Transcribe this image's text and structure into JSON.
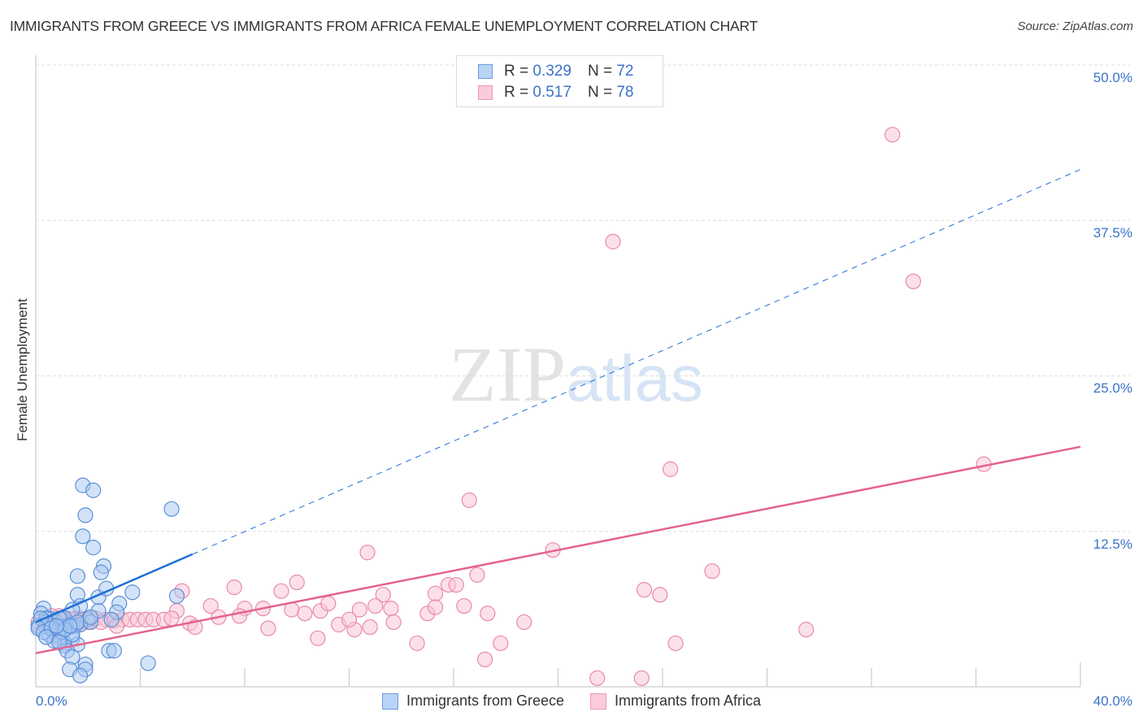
{
  "header": {
    "title": "IMMIGRANTS FROM GREECE VS IMMIGRANTS FROM AFRICA FEMALE UNEMPLOYMENT CORRELATION CHART",
    "source": "Source: ZipAtlas.com"
  },
  "watermark": {
    "zip": "ZIP",
    "atlas": "atlas"
  },
  "colors": {
    "greece_fill": "#a8c8f0",
    "greece_stroke": "#5b8fd8",
    "greece_line": "#1f6fd6",
    "africa_fill": "#f9c6d6",
    "africa_stroke": "#e88aa8",
    "africa_line": "#e4638e",
    "tick_label": "#3b73c8",
    "grid": "#dddddd"
  },
  "legend": {
    "rows": [
      {
        "r_label": "R = ",
        "r_value": "0.329",
        "n_label": "N = ",
        "n_value": "72"
      },
      {
        "r_label": "R = ",
        "r_value": " 0.517",
        "n_label": "N = ",
        "n_value": "78"
      }
    ]
  },
  "axes": {
    "y_ticks": [
      "50.0%",
      "37.5%",
      "25.0%",
      "12.5%"
    ],
    "x_min_label": "0.0%",
    "x_max_label": "40.0%"
  },
  "chart_data": {
    "type": "scatter",
    "title": "IMMIGRANTS FROM GREECE VS IMMIGRANTS FROM AFRICA FEMALE UNEMPLOYMENT CORRELATION CHART",
    "xlabel": "",
    "ylabel": "Female Unemployment",
    "xlim": [
      0,
      40
    ],
    "ylim": [
      0,
      50
    ],
    "x_ticks": [
      0,
      4,
      8,
      12,
      16,
      20,
      24,
      28,
      32,
      36,
      40
    ],
    "y_ticks": [
      12.5,
      25.0,
      37.5,
      50.0
    ],
    "grid": "horizontal dashed",
    "legend_position": "top-center and bottom",
    "series": [
      {
        "name": "Immigrants from Greece",
        "R": 0.329,
        "N": 72,
        "trend": {
          "x0": 0,
          "y0": 5.2,
          "x1": 40,
          "y1": 41.6,
          "solid_until_x": 6.0
        },
        "points": [
          [
            1.8,
            16.2
          ],
          [
            2.2,
            15.8
          ],
          [
            1.9,
            13.8
          ],
          [
            1.8,
            12.1
          ],
          [
            2.2,
            11.2
          ],
          [
            5.2,
            14.3
          ],
          [
            1.6,
            8.9
          ],
          [
            2.6,
            9.7
          ],
          [
            2.5,
            9.2
          ],
          [
            1.6,
            7.4
          ],
          [
            2.4,
            7.2
          ],
          [
            2.7,
            7.9
          ],
          [
            3.7,
            7.6
          ],
          [
            5.4,
            7.3
          ],
          [
            3.2,
            6.7
          ],
          [
            1.7,
            6.5
          ],
          [
            1.4,
            6.2
          ],
          [
            2.4,
            6.1
          ],
          [
            3.1,
            6.0
          ],
          [
            2.9,
            5.4
          ],
          [
            1.2,
            5.0
          ],
          [
            2.0,
            5.4
          ],
          [
            0.3,
            6.3
          ],
          [
            0.2,
            5.9
          ],
          [
            0.5,
            5.5
          ],
          [
            0.8,
            5.2
          ],
          [
            1.1,
            5.5
          ],
          [
            0.1,
            4.9
          ],
          [
            0.4,
            4.8
          ],
          [
            0.6,
            5.0
          ],
          [
            0.8,
            4.6
          ],
          [
            1.0,
            4.8
          ],
          [
            1.3,
            4.8
          ],
          [
            1.5,
            4.9
          ],
          [
            0.8,
            4.2
          ],
          [
            1.4,
            3.9
          ],
          [
            1.1,
            3.5
          ],
          [
            1.6,
            3.4
          ],
          [
            1.4,
            4.9
          ],
          [
            1.7,
            5.0
          ],
          [
            0.5,
            4.2
          ],
          [
            0.7,
            4.4
          ],
          [
            0.9,
            4.0
          ],
          [
            1.1,
            3.3
          ],
          [
            1.2,
            2.9
          ],
          [
            2.8,
            2.9
          ],
          [
            3.0,
            2.9
          ],
          [
            1.4,
            2.4
          ],
          [
            1.9,
            1.8
          ],
          [
            1.3,
            1.4
          ],
          [
            1.9,
            1.4
          ],
          [
            1.7,
            0.9
          ],
          [
            4.3,
            1.9
          ],
          [
            0.4,
            5.5
          ],
          [
            0.6,
            4.9
          ],
          [
            0.9,
            5.5
          ],
          [
            0.4,
            5.2
          ],
          [
            0.2,
            5.5
          ],
          [
            0.7,
            3.7
          ],
          [
            1.0,
            4.4
          ],
          [
            1.4,
            4.2
          ],
          [
            1.6,
            5.2
          ],
          [
            2.1,
            5.2
          ],
          [
            0.1,
            4.7
          ],
          [
            0.3,
            4.4
          ],
          [
            1.1,
            4.6
          ],
          [
            1.3,
            4.9
          ],
          [
            0.6,
            4.7
          ],
          [
            0.8,
            4.9
          ],
          [
            0.4,
            4.0
          ],
          [
            0.9,
            3.6
          ],
          [
            2.1,
            5.6
          ]
        ]
      },
      {
        "name": "Immigrants from Africa",
        "R": 0.517,
        "N": 78,
        "trend": {
          "x0": 0,
          "y0": 2.7,
          "x1": 40,
          "y1": 19.3
        },
        "points": [
          [
            32.8,
            44.4
          ],
          [
            22.1,
            35.8
          ],
          [
            33.6,
            32.6
          ],
          [
            24.3,
            17.5
          ],
          [
            36.3,
            17.9
          ],
          [
            16.6,
            15.0
          ],
          [
            12.7,
            10.8
          ],
          [
            19.8,
            11.0
          ],
          [
            25.9,
            9.3
          ],
          [
            16.9,
            9.0
          ],
          [
            5.6,
            7.7
          ],
          [
            7.6,
            8.0
          ],
          [
            9.4,
            7.7
          ],
          [
            10.0,
            8.4
          ],
          [
            13.3,
            7.4
          ],
          [
            15.3,
            7.5
          ],
          [
            15.8,
            8.2
          ],
          [
            16.1,
            8.2
          ],
          [
            23.3,
            7.8
          ],
          [
            23.9,
            7.4
          ],
          [
            6.7,
            6.5
          ],
          [
            5.4,
            6.1
          ],
          [
            8.0,
            6.3
          ],
          [
            8.7,
            6.3
          ],
          [
            9.8,
            6.2
          ],
          [
            10.3,
            5.9
          ],
          [
            10.9,
            6.1
          ],
          [
            11.2,
            6.7
          ],
          [
            12.4,
            6.2
          ],
          [
            13.0,
            6.5
          ],
          [
            13.6,
            6.3
          ],
          [
            15.0,
            5.9
          ],
          [
            15.3,
            6.4
          ],
          [
            16.4,
            6.5
          ],
          [
            17.3,
            5.9
          ],
          [
            0.6,
            5.7
          ],
          [
            0.9,
            5.7
          ],
          [
            1.2,
            5.5
          ],
          [
            1.5,
            5.5
          ],
          [
            1.7,
            5.5
          ],
          [
            2.1,
            5.5
          ],
          [
            2.3,
            5.5
          ],
          [
            2.7,
            5.4
          ],
          [
            3.0,
            5.3
          ],
          [
            3.3,
            5.4
          ],
          [
            3.6,
            5.4
          ],
          [
            3.9,
            5.4
          ],
          [
            4.2,
            5.4
          ],
          [
            4.5,
            5.4
          ],
          [
            4.9,
            5.4
          ],
          [
            5.2,
            5.5
          ],
          [
            0.3,
            4.9
          ],
          [
            0.6,
            4.9
          ],
          [
            0.1,
            5.2
          ],
          [
            1.6,
            5.0
          ],
          [
            2.0,
            5.2
          ],
          [
            5.9,
            5.1
          ],
          [
            7.0,
            5.6
          ],
          [
            7.8,
            5.7
          ],
          [
            8.9,
            4.7
          ],
          [
            11.6,
            5.0
          ],
          [
            12.2,
            4.6
          ],
          [
            13.7,
            5.2
          ],
          [
            18.7,
            5.2
          ],
          [
            10.8,
            3.9
          ],
          [
            14.6,
            3.5
          ],
          [
            17.8,
            3.5
          ],
          [
            24.5,
            3.5
          ],
          [
            29.5,
            4.6
          ],
          [
            17.2,
            2.2
          ],
          [
            21.5,
            0.7
          ],
          [
            23.2,
            0.7
          ],
          [
            1.4,
            5.4
          ],
          [
            2.5,
            5.2
          ],
          [
            3.1,
            4.9
          ],
          [
            6.1,
            4.8
          ],
          [
            12.0,
            5.4
          ],
          [
            12.8,
            4.8
          ]
        ]
      }
    ]
  },
  "bottom_legend": {
    "items": [
      {
        "label": "Immigrants from Greece"
      },
      {
        "label": "Immigrants from Africa"
      }
    ]
  },
  "y_axis_label": "Female Unemployment"
}
